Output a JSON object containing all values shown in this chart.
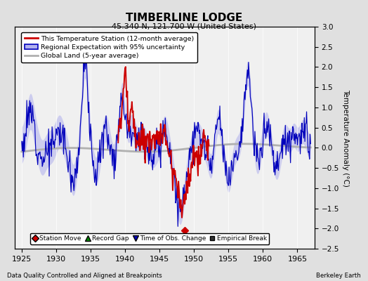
{
  "title": "TIMBERLINE LODGE",
  "subtitle": "45.340 N, 121.700 W (United States)",
  "ylabel": "Temperature Anomaly (°C)",
  "xlabel_note": "Data Quality Controlled and Aligned at Breakpoints",
  "credit": "Berkeley Earth",
  "xlim": [
    1924.0,
    1967.5
  ],
  "ylim": [
    -2.5,
    3.0
  ],
  "yticks": [
    -2.5,
    -2,
    -1.5,
    -1,
    -0.5,
    0,
    0.5,
    1,
    1.5,
    2,
    2.5,
    3
  ],
  "xticks": [
    1925,
    1930,
    1935,
    1940,
    1945,
    1950,
    1955,
    1960,
    1965
  ],
  "bg_color": "#e0e0e0",
  "plot_bg_color": "#f0f0f0",
  "red_color": "#cc0000",
  "blue_color": "#0000bb",
  "blue_shade_color": "#b0b0ee",
  "gray_color": "#b0b0b0",
  "legend_labels": [
    "This Temperature Station (12-month average)",
    "Regional Expectation with 95% uncertainty",
    "Global Land (5-year average)"
  ],
  "bottom_legend": [
    {
      "marker": "D",
      "color": "#cc0000",
      "label": "Station Move"
    },
    {
      "marker": "^",
      "color": "#008800",
      "label": "Record Gap"
    },
    {
      "marker": "v",
      "color": "#0000bb",
      "label": "Time of Obs. Change"
    },
    {
      "marker": "s",
      "color": "#333333",
      "label": "Empirical Break"
    }
  ],
  "station_move_x": 1948.7,
  "station_move_y": -2.05
}
